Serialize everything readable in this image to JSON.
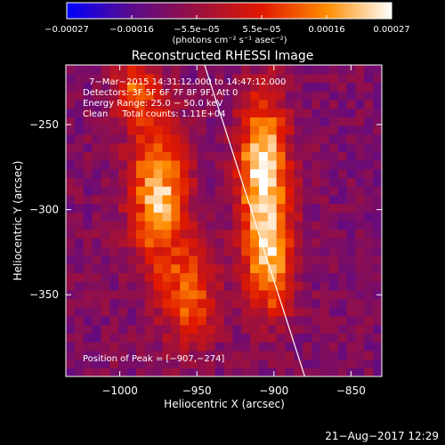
{
  "chart_data": {
    "type": "heatmap",
    "title": "Reconstructed RHESSI Image",
    "xlabel": "Heliocentric X (arcsec)",
    "ylabel": "Heliocentric Y (arcsec)",
    "xlim": [
      -1035,
      -830
    ],
    "ylim": [
      -398,
      -215
    ],
    "x_ticks": [
      -1000,
      -950,
      -900,
      -850
    ],
    "x_tick_labels": [
      "−1000",
      "−950",
      "−900",
      "−850"
    ],
    "y_ticks": [
      -250,
      -300,
      -350
    ],
    "y_tick_labels": [
      "−250",
      "−300",
      "−350"
    ],
    "colorbar": {
      "range": [
        -0.00027,
        0.00027
      ],
      "tick_labels": [
        "−0.00027",
        "−0.00016",
        "−5.5e−05",
        "5.5e−05",
        "0.00016",
        "0.00027"
      ],
      "units": "(photons cm⁻² s⁻¹ asec⁻²)",
      "colors": [
        "#0000ff",
        "#5a0a8c",
        "#9a1040",
        "#e01800",
        "#ff8c00",
        "#ffffff"
      ]
    },
    "info_lines": [
      "7−Mar−2015 14:31:12.000 to 14:47:12.000",
      "Detectors: 3F 5F 6F 7F 8F 9F, Att 0",
      "Energy Range: 25.0 − 50.0 keV",
      "Clean     Total counts: 1.11E+04"
    ],
    "peak_label": "Position of Peak = [−907,−274]",
    "peak": [
      -907,
      -274
    ],
    "limb_line": [
      [
        -945,
        -215
      ],
      [
        -880,
        -398
      ]
    ],
    "sources": [
      {
        "x": -975,
        "y": -290,
        "peak": 0.00021,
        "sx": 13,
        "sy": 30
      },
      {
        "x": -907,
        "y": -274,
        "peak": 0.00027,
        "sx": 11,
        "sy": 28
      },
      {
        "x": -903,
        "y": -330,
        "peak": 0.00019,
        "sx": 11,
        "sy": 22
      },
      {
        "x": -955,
        "y": -350,
        "peak": 0.00012,
        "sx": 12,
        "sy": 20
      },
      {
        "x": -990,
        "y": -230,
        "peak": 0.0001,
        "sx": 10,
        "sy": 14
      }
    ],
    "background_level": -0.0001
  },
  "footer": {
    "date": "21−Aug−2017 12:29"
  }
}
